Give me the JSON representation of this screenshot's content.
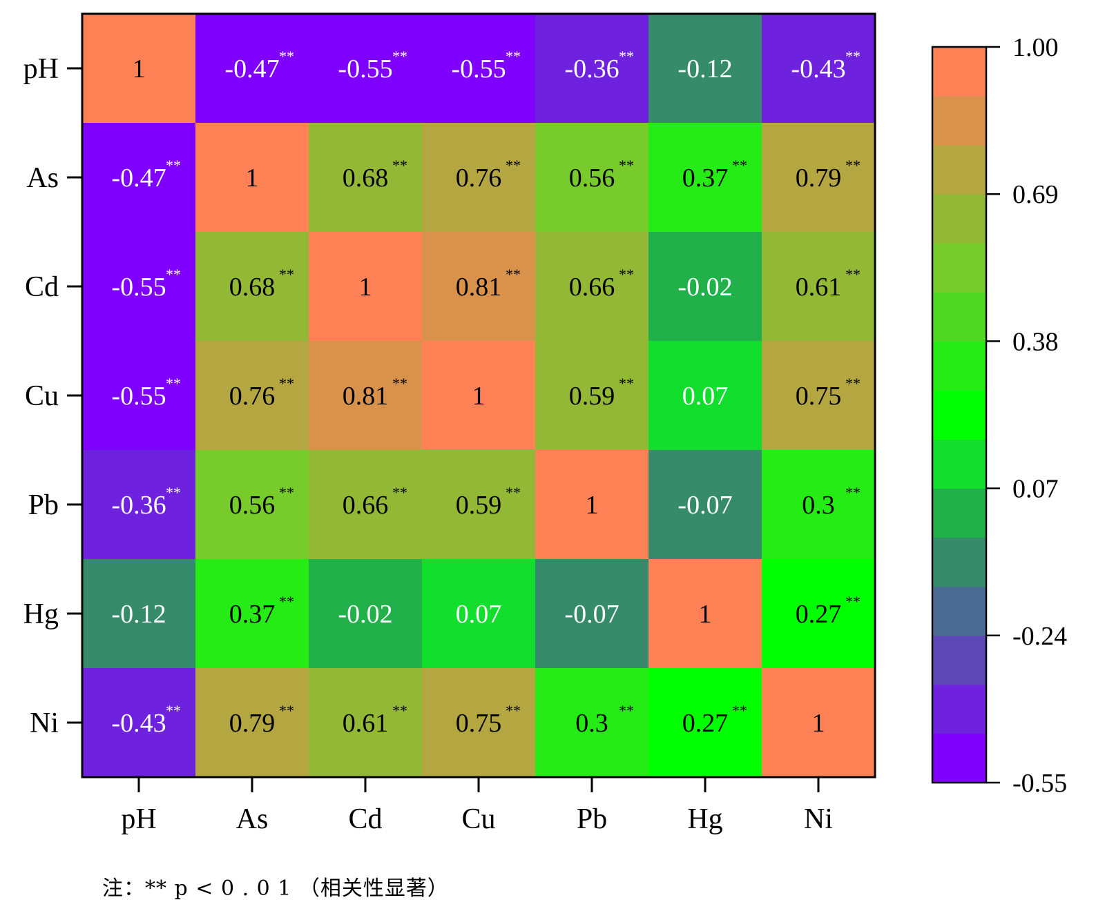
{
  "chart_data": {
    "type": "heatmap",
    "title": "",
    "xlabel": "",
    "ylabel": "",
    "row_labels": [
      "pH",
      "As",
      "Cd",
      "Cu",
      "Pb",
      "Hg",
      "Ni"
    ],
    "col_labels": [
      "pH",
      "As",
      "Cd",
      "Cu",
      "Pb",
      "Hg",
      "Ni"
    ],
    "values": [
      [
        1,
        -0.47,
        -0.55,
        -0.55,
        -0.36,
        -0.12,
        -0.43
      ],
      [
        -0.47,
        1,
        0.68,
        0.76,
        0.56,
        0.37,
        0.79
      ],
      [
        -0.55,
        0.68,
        1,
        0.81,
        0.66,
        -0.02,
        0.61
      ],
      [
        -0.55,
        0.76,
        0.81,
        1,
        0.59,
        0.07,
        0.75
      ],
      [
        -0.36,
        0.56,
        0.66,
        0.59,
        1,
        -0.07,
        0.3
      ],
      [
        -0.12,
        0.37,
        -0.02,
        0.07,
        -0.07,
        1,
        0.27
      ],
      [
        -0.43,
        0.79,
        0.61,
        0.75,
        0.3,
        0.27,
        1
      ]
    ],
    "significant": [
      [
        false,
        true,
        true,
        true,
        true,
        false,
        true
      ],
      [
        true,
        false,
        true,
        true,
        true,
        true,
        true
      ],
      [
        true,
        true,
        false,
        true,
        true,
        false,
        true
      ],
      [
        true,
        true,
        true,
        false,
        true,
        false,
        true
      ],
      [
        true,
        true,
        true,
        true,
        false,
        false,
        true
      ],
      [
        false,
        true,
        false,
        false,
        false,
        false,
        true
      ],
      [
        true,
        true,
        true,
        true,
        true,
        true,
        false
      ]
    ],
    "significance_marker": "**",
    "colorbar": {
      "min": -0.55,
      "max": 1.0,
      "tick_labels": [
        "1.00",
        "0.69",
        "0.38",
        "0.07",
        "-0.24",
        "-0.55"
      ],
      "tick_values": [
        1.0,
        0.69,
        0.38,
        0.07,
        -0.24,
        -0.55
      ],
      "colors_low_to_high": [
        "#8000ff",
        "#6f22de",
        "#5e48b8",
        "#4b6c92",
        "#358b6a",
        "#22b04a",
        "#12de2d",
        "#00ff00",
        "#25ec15",
        "#4fd923",
        "#77cb2a",
        "#93b835",
        "#b4a640",
        "#d8924b",
        "#ff8257"
      ]
    },
    "legend": "right"
  },
  "note": "注：** p < 0 . 0 1 （相关性显著）"
}
